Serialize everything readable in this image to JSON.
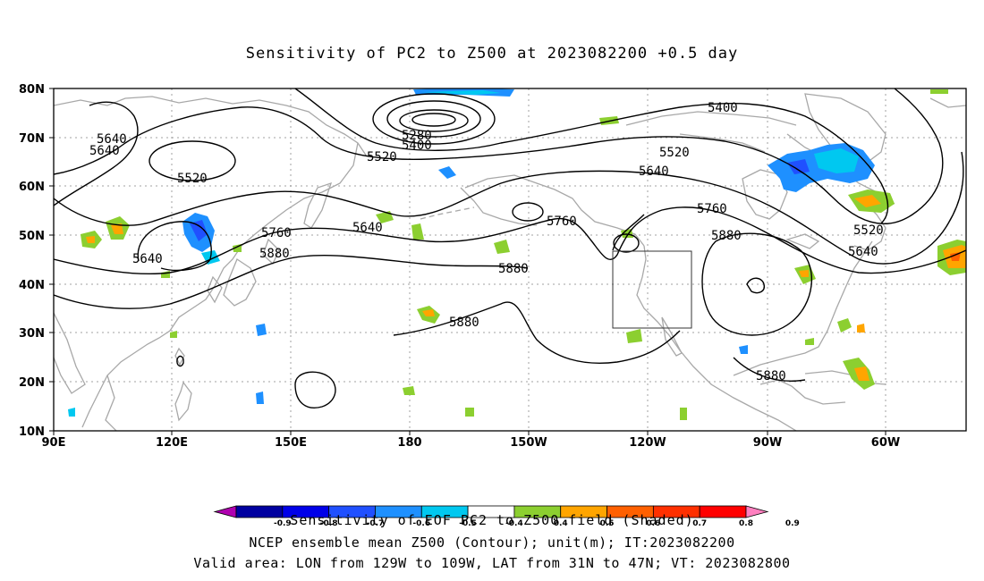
{
  "title": "Sensitivity of PC2 to Z500 at 2023082200 +0.5 day",
  "lat_labels": [
    "80N",
    "70N",
    "60N",
    "50N",
    "40N",
    "30N",
    "20N",
    "10N"
  ],
  "lon_labels": [
    "90E",
    "120E",
    "150E",
    "180",
    "150W",
    "120W",
    "90W",
    "60W"
  ],
  "contour_labels": [
    {
      "text": "5640"
    },
    {
      "text": "5640"
    },
    {
      "text": "5520"
    },
    {
      "text": "5640"
    },
    {
      "text": "5760"
    },
    {
      "text": "5880"
    },
    {
      "text": "5640"
    },
    {
      "text": "5280"
    },
    {
      "text": "5400"
    },
    {
      "text": "5520"
    },
    {
      "text": "5760"
    },
    {
      "text": "5880"
    },
    {
      "text": "5880"
    },
    {
      "text": "5400"
    },
    {
      "text": "5520"
    },
    {
      "text": "5640"
    },
    {
      "text": "5760"
    },
    {
      "text": "5880"
    },
    {
      "text": "5520"
    },
    {
      "text": "5640"
    },
    {
      "text": "5880"
    }
  ],
  "colorbar": {
    "ticks": [
      "-0.9",
      "-0.8",
      "-0.7",
      "-0.6",
      "-0.5",
      "-0.4",
      "0.4",
      "0.5",
      "0.6",
      "0.7",
      "0.8",
      "0.9"
    ],
    "colors": [
      "#b000b0",
      "#0000a0",
      "#0000e8",
      "#2050ff",
      "#1e90ff",
      "#00c8f0",
      "#ffffff",
      "#8ccf30",
      "#ffa500",
      "#ff6000",
      "#ff3000",
      "#ff0000",
      "#ff80c0"
    ]
  },
  "footer": [
    "Sensitivity of EOF PC2 to Z500 field (Shaded)",
    "NCEP ensemble mean Z500 (Contour); unit(m); IT:2023082200",
    "Valid area: LON from 129W to 109W, LAT from 31N to 47N; VT: 2023082800"
  ],
  "colors": {
    "coast": "#a8a8a8",
    "contour": "#000000",
    "grid": "#a0a0a0",
    "green": "#8ccf30",
    "orange": "#ffa500",
    "red_orange": "#ff6000",
    "blue": "#1e90ff",
    "cyan": "#00c8f0"
  }
}
